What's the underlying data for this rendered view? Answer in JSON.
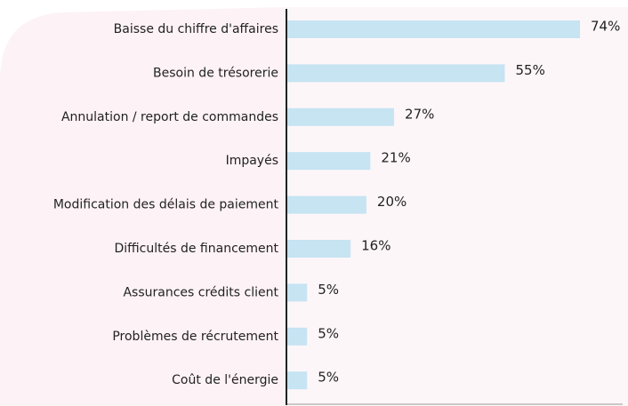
{
  "chart_data": {
    "type": "bar",
    "orientation": "horizontal",
    "categories": [
      "Baisse du chiffre d'affaires",
      "Besoin de trésorerie",
      "Annulation / report de commandes",
      "Impayés",
      "Modification des délais de paiement",
      "Difficultés de financement",
      "Assurances crédits client",
      "Problèmes de récrutement",
      "Coût de l'énergie"
    ],
    "values": [
      74,
      55,
      27,
      21,
      20,
      16,
      5,
      5,
      5
    ],
    "value_labels": [
      "74%",
      "55%",
      "27%",
      "21%",
      "20%",
      "16%",
      "5%",
      "5%",
      "5%"
    ],
    "color": "#c6e4f2"
  }
}
